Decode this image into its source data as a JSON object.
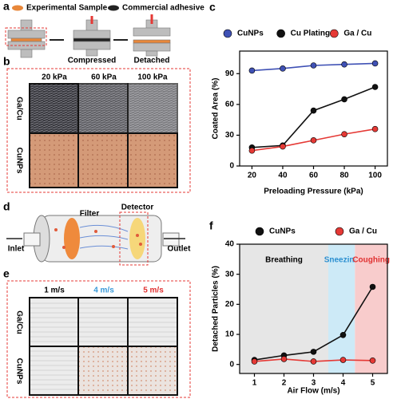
{
  "panels": {
    "a": {
      "label": "a",
      "legend": [
        "Experimental Sample",
        "Commercial adhesive"
      ],
      "steps": [
        "Compressed",
        "Detached"
      ]
    },
    "b": {
      "label": "b",
      "columns": [
        "20 kPa",
        "60 kPa",
        "100 kPa"
      ],
      "rows": [
        "Ga/Cu",
        "CuNPs"
      ]
    },
    "d": {
      "label": "d",
      "parts": [
        "Filter",
        "Detector",
        "Inlet",
        "Outlet"
      ]
    },
    "e": {
      "label": "e",
      "columns": [
        {
          "text": "1 m/s",
          "color": "#000000"
        },
        {
          "text": "4 m/s",
          "color": "#3a9ad9"
        },
        {
          "text": "5 m/s",
          "color": "#e03030"
        }
      ],
      "rows": [
        "Ga/Cu",
        "CuNPs"
      ]
    },
    "c": {
      "label": "c"
    },
    "f": {
      "label": "f"
    }
  },
  "chart_data": [
    {
      "type": "line",
      "x_label": "Preloading Pressure (kPa)",
      "y_label": "Coated Area (%)",
      "x": [
        20,
        40,
        60,
        80,
        100
      ],
      "xlim": [
        12,
        108
      ],
      "xticks": [
        20,
        40,
        60,
        80,
        100
      ],
      "ylim": [
        0,
        112
      ],
      "yticks": [
        0,
        30,
        60,
        90
      ],
      "series": [
        {
          "name": "CuNPs",
          "color": "#3f51b5",
          "values": [
            93,
            95,
            98,
            99,
            100
          ]
        },
        {
          "name": "Cu Plating",
          "color": "#111111",
          "values": [
            18,
            20,
            54,
            65,
            77
          ]
        },
        {
          "name": "Ga / Cu",
          "color": "#e53935",
          "values": [
            15,
            19,
            25,
            31,
            36
          ]
        }
      ]
    },
    {
      "type": "line",
      "x_label": "Air Flow (m/s)",
      "y_label": "Detached Particles (%)",
      "x": [
        1,
        2,
        3,
        4,
        5
      ],
      "xlim": [
        0.5,
        5.5
      ],
      "xticks": [
        1,
        2,
        3,
        4,
        5
      ],
      "ylim": [
        -3,
        40
      ],
      "yticks": [
        0,
        10,
        20,
        30,
        40
      ],
      "regions": [
        {
          "label": "Breathing",
          "from": 0.5,
          "to": 3.5,
          "color": "#e6e6e6",
          "text_color": "#000000"
        },
        {
          "name": "s",
          "label": "Sneezing",
          "from": 3.5,
          "to": 4.4,
          "color": "#cdeaf7",
          "text_color": "#2a8fd0"
        },
        {
          "label": "Coughing",
          "from": 4.4,
          "to": 5.5,
          "color": "#f8cccc",
          "text_color": "#e03030"
        }
      ],
      "series": [
        {
          "name": "CuNPs",
          "color": "#111111",
          "values": [
            1.5,
            3,
            4.2,
            9.8,
            25.8
          ]
        },
        {
          "name": "Ga / Cu",
          "color": "#e53935",
          "values": [
            1,
            1.8,
            1,
            1.5,
            1.3
          ]
        }
      ]
    }
  ]
}
